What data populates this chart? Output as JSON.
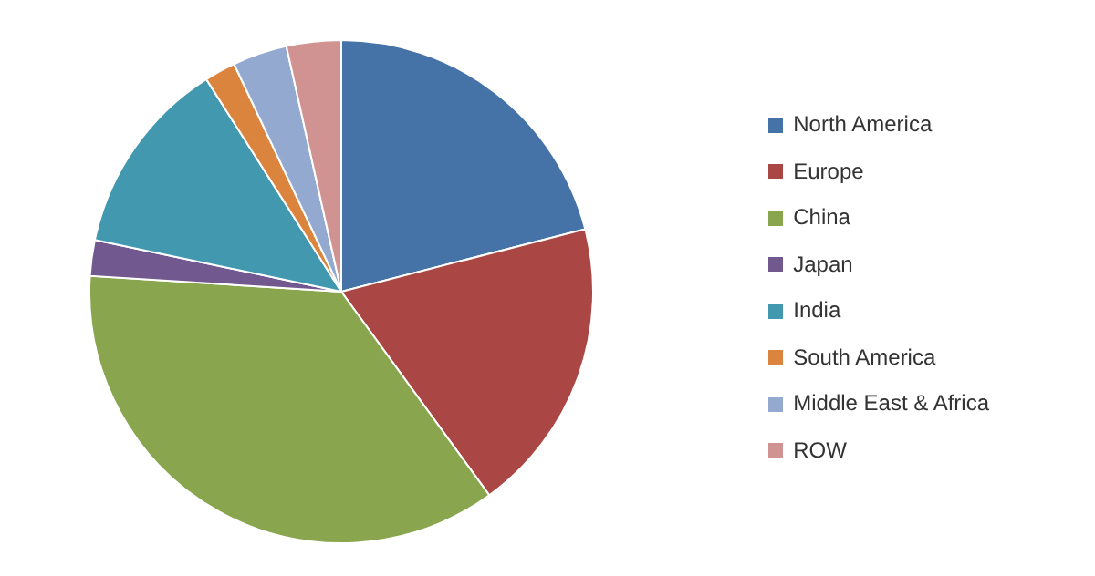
{
  "chart_data": {
    "type": "pie",
    "categories": [
      "North America",
      "Europe",
      "China",
      "Japan",
      "India",
      "South America",
      "Middle East & Africa",
      "ROW"
    ],
    "values": [
      21,
      19,
      36,
      2.3,
      12.7,
      2,
      3.5,
      3.5
    ],
    "colors": [
      "#4572a7",
      "#aa4643",
      "#89a54e",
      "#71588f",
      "#4198af",
      "#db843d",
      "#93a9cf",
      "#d19392"
    ],
    "legend": "right"
  }
}
